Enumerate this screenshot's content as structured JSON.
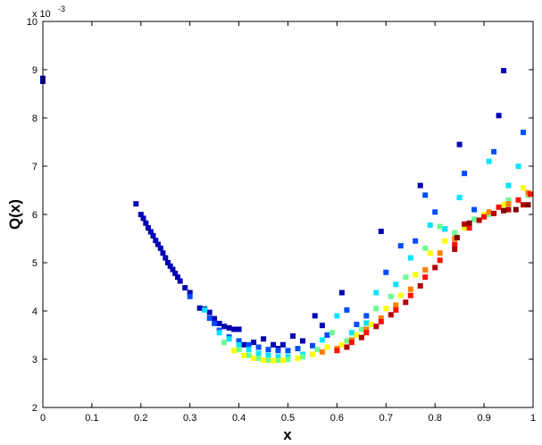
{
  "chart_data": {
    "type": "scatter",
    "title": "",
    "xlabel": "x",
    "ylabel": "Q(x)",
    "y_multiplier_label": "x 10",
    "y_multiplier_exponent": "-3",
    "xlim": [
      0,
      1
    ],
    "ylim": [
      2,
      10
    ],
    "x_ticks": [
      "0",
      "0.1",
      "0.2",
      "0.3",
      "0.4",
      "0.5",
      "0.6",
      "0.7",
      "0.8",
      "0.9",
      "1"
    ],
    "y_ticks": [
      "2",
      "3",
      "4",
      "5",
      "6",
      "7",
      "8",
      "9",
      "10"
    ],
    "grid": false,
    "legend": "none",
    "marker": "square",
    "colormap": "jet",
    "points": [
      [
        0.0,
        8.82,
        0.02
      ],
      [
        0.0,
        8.76,
        0.02
      ],
      [
        0.19,
        6.22,
        0.05
      ],
      [
        0.2,
        6.0,
        0.05
      ],
      [
        0.205,
        5.92,
        0.05
      ],
      [
        0.21,
        5.82,
        0.05
      ],
      [
        0.215,
        5.72,
        0.05
      ],
      [
        0.22,
        5.64,
        0.05
      ],
      [
        0.225,
        5.56,
        0.05
      ],
      [
        0.23,
        5.46,
        0.05
      ],
      [
        0.235,
        5.38,
        0.05
      ],
      [
        0.24,
        5.3,
        0.05
      ],
      [
        0.245,
        5.2,
        0.05
      ],
      [
        0.25,
        5.1,
        0.05
      ],
      [
        0.255,
        5.0,
        0.05
      ],
      [
        0.26,
        4.93,
        0.05
      ],
      [
        0.265,
        4.86,
        0.05
      ],
      [
        0.27,
        4.78,
        0.05
      ],
      [
        0.275,
        4.7,
        0.05
      ],
      [
        0.28,
        4.62,
        0.05
      ],
      [
        0.29,
        4.48,
        0.05
      ],
      [
        0.3,
        4.38,
        0.05
      ],
      [
        0.32,
        4.06,
        0.05
      ],
      [
        0.33,
        4.04,
        0.05
      ],
      [
        0.34,
        3.97,
        0.05
      ],
      [
        0.35,
        3.84,
        0.05
      ],
      [
        0.36,
        3.74,
        0.05
      ],
      [
        0.37,
        3.68,
        0.05
      ],
      [
        0.38,
        3.65,
        0.05
      ],
      [
        0.39,
        3.62,
        0.05
      ],
      [
        0.4,
        3.62,
        0.05
      ],
      [
        0.41,
        3.3,
        0.05
      ],
      [
        0.43,
        3.35,
        0.05
      ],
      [
        0.45,
        3.42,
        0.05
      ],
      [
        0.47,
        3.3,
        0.05
      ],
      [
        0.48,
        3.22,
        0.05
      ],
      [
        0.49,
        3.3,
        0.05
      ],
      [
        0.51,
        3.48,
        0.05
      ],
      [
        0.53,
        3.38,
        0.05
      ],
      [
        0.555,
        3.9,
        0.05
      ],
      [
        0.57,
        3.7,
        0.05
      ],
      [
        0.61,
        4.38,
        0.05
      ],
      [
        0.69,
        5.65,
        0.05
      ],
      [
        0.77,
        6.6,
        0.05
      ],
      [
        0.85,
        7.45,
        0.05
      ],
      [
        0.93,
        8.05,
        0.05
      ],
      [
        0.94,
        8.98,
        0.05
      ],
      [
        0.3,
        4.3,
        0.2
      ],
      [
        0.34,
        3.85,
        0.2
      ],
      [
        0.35,
        3.74,
        0.2
      ],
      [
        0.36,
        3.6,
        0.2
      ],
      [
        0.38,
        3.46,
        0.2
      ],
      [
        0.4,
        3.38,
        0.2
      ],
      [
        0.42,
        3.3,
        0.2
      ],
      [
        0.44,
        3.25,
        0.2
      ],
      [
        0.46,
        3.2,
        0.2
      ],
      [
        0.48,
        3.18,
        0.2
      ],
      [
        0.5,
        3.18,
        0.2
      ],
      [
        0.52,
        3.22,
        0.2
      ],
      [
        0.55,
        3.28,
        0.2
      ],
      [
        0.58,
        3.5,
        0.2
      ],
      [
        0.62,
        4.02,
        0.2
      ],
      [
        0.64,
        3.72,
        0.2
      ],
      [
        0.66,
        3.9,
        0.2
      ],
      [
        0.7,
        4.8,
        0.2
      ],
      [
        0.73,
        5.35,
        0.2
      ],
      [
        0.76,
        5.45,
        0.2
      ],
      [
        0.78,
        6.4,
        0.2
      ],
      [
        0.8,
        6.05,
        0.2
      ],
      [
        0.82,
        5.7,
        0.2
      ],
      [
        0.86,
        6.85,
        0.2
      ],
      [
        0.88,
        6.1,
        0.2
      ],
      [
        0.92,
        7.3,
        0.2
      ],
      [
        0.98,
        7.7,
        0.2
      ],
      [
        0.33,
        4.02,
        0.35
      ],
      [
        0.36,
        3.55,
        0.35
      ],
      [
        0.38,
        3.42,
        0.35
      ],
      [
        0.4,
        3.3,
        0.35
      ],
      [
        0.42,
        3.2,
        0.35
      ],
      [
        0.44,
        3.12,
        0.35
      ],
      [
        0.46,
        3.08,
        0.35
      ],
      [
        0.48,
        3.05,
        0.35
      ],
      [
        0.5,
        3.05,
        0.35
      ],
      [
        0.53,
        3.1,
        0.35
      ],
      [
        0.57,
        3.4,
        0.35
      ],
      [
        0.6,
        3.9,
        0.35
      ],
      [
        0.63,
        3.55,
        0.35
      ],
      [
        0.66,
        3.75,
        0.35
      ],
      [
        0.68,
        4.38,
        0.35
      ],
      [
        0.72,
        4.55,
        0.35
      ],
      [
        0.75,
        5.1,
        0.35
      ],
      [
        0.79,
        5.78,
        0.35
      ],
      [
        0.82,
        5.7,
        0.35
      ],
      [
        0.85,
        6.35,
        0.35
      ],
      [
        0.91,
        7.1,
        0.35
      ],
      [
        0.95,
        6.6,
        0.35
      ],
      [
        0.97,
        7.0,
        0.35
      ],
      [
        0.37,
        3.35,
        0.48
      ],
      [
        0.4,
        3.2,
        0.48
      ],
      [
        0.42,
        3.08,
        0.48
      ],
      [
        0.44,
        3.02,
        0.48
      ],
      [
        0.46,
        2.98,
        0.48
      ],
      [
        0.48,
        2.98,
        0.48
      ],
      [
        0.5,
        3.0,
        0.48
      ],
      [
        0.53,
        3.05,
        0.48
      ],
      [
        0.56,
        3.2,
        0.48
      ],
      [
        0.59,
        3.55,
        0.48
      ],
      [
        0.62,
        3.38,
        0.48
      ],
      [
        0.65,
        3.62,
        0.48
      ],
      [
        0.68,
        4.05,
        0.48
      ],
      [
        0.71,
        4.3,
        0.48
      ],
      [
        0.74,
        4.7,
        0.48
      ],
      [
        0.78,
        5.3,
        0.48
      ],
      [
        0.81,
        5.75,
        0.48
      ],
      [
        0.84,
        5.62,
        0.48
      ],
      [
        0.88,
        5.9,
        0.48
      ],
      [
        0.91,
        6.0,
        0.48
      ],
      [
        0.95,
        6.3,
        0.48
      ],
      [
        0.99,
        6.4,
        0.48
      ],
      [
        0.39,
        3.18,
        0.62
      ],
      [
        0.41,
        3.08,
        0.62
      ],
      [
        0.43,
        3.02,
        0.62
      ],
      [
        0.45,
        2.98,
        0.62
      ],
      [
        0.47,
        2.97,
        0.62
      ],
      [
        0.49,
        2.98,
        0.62
      ],
      [
        0.52,
        3.02,
        0.62
      ],
      [
        0.55,
        3.1,
        0.62
      ],
      [
        0.58,
        3.25,
        0.62
      ],
      [
        0.61,
        3.3,
        0.62
      ],
      [
        0.64,
        3.5,
        0.62
      ],
      [
        0.67,
        3.72,
        0.62
      ],
      [
        0.7,
        4.05,
        0.62
      ],
      [
        0.73,
        4.32,
        0.62
      ],
      [
        0.76,
        4.75,
        0.62
      ],
      [
        0.79,
        5.2,
        0.62
      ],
      [
        0.82,
        5.45,
        0.62
      ],
      [
        0.86,
        5.72,
        0.62
      ],
      [
        0.9,
        6.0,
        0.62
      ],
      [
        0.94,
        6.2,
        0.62
      ],
      [
        0.98,
        6.55,
        0.62
      ],
      [
        0.57,
        3.15,
        0.75
      ],
      [
        0.6,
        3.22,
        0.75
      ],
      [
        0.63,
        3.4,
        0.75
      ],
      [
        0.66,
        3.62,
        0.75
      ],
      [
        0.69,
        3.85,
        0.75
      ],
      [
        0.72,
        4.12,
        0.75
      ],
      [
        0.75,
        4.45,
        0.75
      ],
      [
        0.78,
        4.85,
        0.75
      ],
      [
        0.81,
        5.2,
        0.75
      ],
      [
        0.84,
        5.5,
        0.75
      ],
      [
        0.87,
        5.78,
        0.75
      ],
      [
        0.91,
        6.05,
        0.75
      ],
      [
        0.95,
        6.22,
        0.75
      ],
      [
        0.99,
        6.45,
        0.75
      ],
      [
        0.6,
        3.18,
        0.86
      ],
      [
        0.63,
        3.35,
        0.86
      ],
      [
        0.66,
        3.55,
        0.86
      ],
      [
        0.69,
        3.78,
        0.86
      ],
      [
        0.72,
        4.02,
        0.86
      ],
      [
        0.75,
        4.32,
        0.86
      ],
      [
        0.78,
        4.7,
        0.86
      ],
      [
        0.81,
        5.05,
        0.86
      ],
      [
        0.84,
        5.38,
        0.86
      ],
      [
        0.87,
        5.72,
        0.86
      ],
      [
        0.9,
        5.95,
        0.86
      ],
      [
        0.93,
        6.15,
        0.86
      ],
      [
        0.97,
        6.3,
        0.86
      ],
      [
        1.0,
        6.42,
        0.86
      ],
      [
        0.62,
        3.25,
        0.95
      ],
      [
        0.65,
        3.45,
        0.95
      ],
      [
        0.68,
        3.68,
        0.95
      ],
      [
        0.71,
        3.92,
        0.95
      ],
      [
        0.74,
        4.18,
        0.95
      ],
      [
        0.77,
        4.52,
        0.95
      ],
      [
        0.8,
        4.9,
        0.95
      ],
      [
        0.84,
        5.28,
        0.95
      ],
      [
        0.86,
        5.8,
        0.95
      ],
      [
        0.89,
        5.88,
        0.95
      ],
      [
        0.92,
        6.02,
        0.95
      ],
      [
        0.95,
        6.1,
        0.95
      ],
      [
        0.98,
        6.2,
        0.95
      ],
      [
        0.845,
        5.52,
        1.0
      ],
      [
        0.87,
        5.82,
        1.0
      ],
      [
        0.94,
        6.08,
        1.0
      ],
      [
        0.965,
        6.1,
        1.0
      ],
      [
        0.99,
        6.2,
        1.0
      ]
    ]
  }
}
